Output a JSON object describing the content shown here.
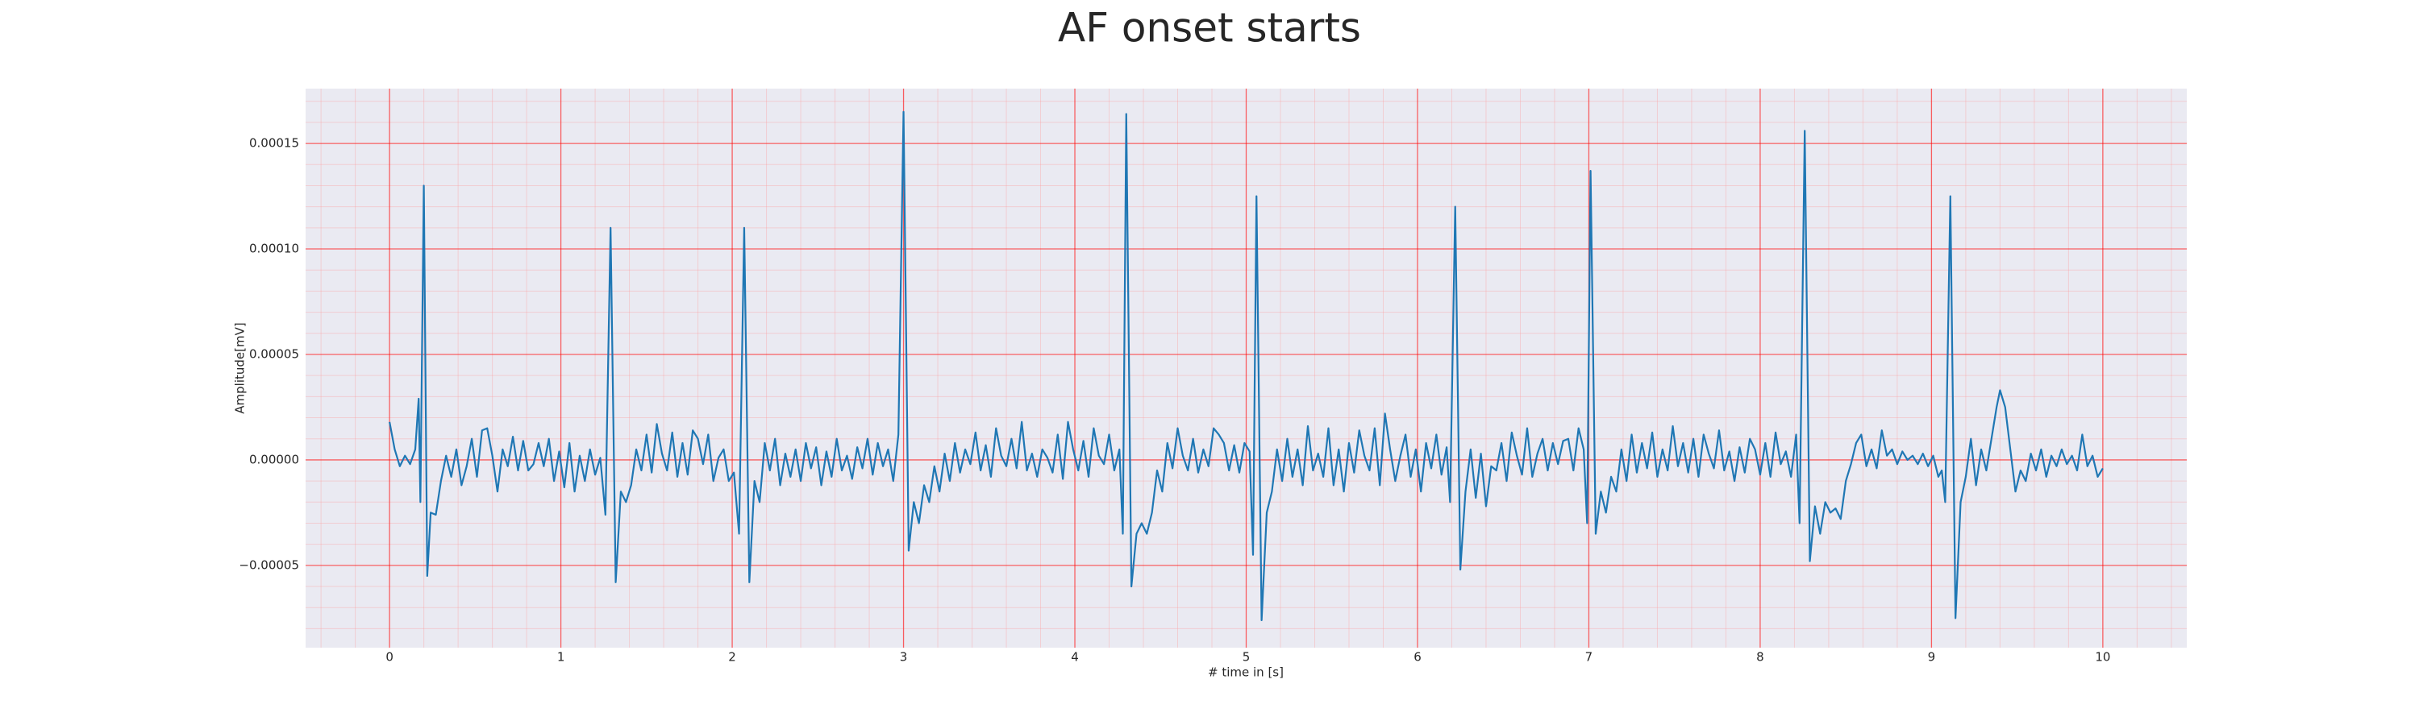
{
  "chart_data": {
    "type": "line",
    "title": "AF onset starts",
    "xlabel": "# time in [s]",
    "ylabel": "Amplitude[mV]",
    "color": "#1f77b4",
    "grid": true,
    "minor_grid": true,
    "xlim": [
      -0.49,
      10.49
    ],
    "ylim": [
      -8.9e-05,
      0.000176
    ],
    "xticks": [
      0,
      1,
      2,
      3,
      4,
      5,
      6,
      7,
      8,
      9,
      10
    ],
    "yticks": [
      {
        "value": -5e-05,
        "label": "−0.00005"
      },
      {
        "value": 0,
        "label": "0.00000"
      },
      {
        "value": 5e-05,
        "label": "0.00005"
      },
      {
        "value": 0.0001,
        "label": "0.00010"
      },
      {
        "value": 0.00015,
        "label": "0.00015"
      }
    ],
    "x": [
      0.0,
      0.03,
      0.06,
      0.09,
      0.12,
      0.15,
      0.17,
      0.18,
      0.2,
      0.22,
      0.24,
      0.27,
      0.3,
      0.33,
      0.36,
      0.39,
      0.42,
      0.45,
      0.48,
      0.51,
      0.54,
      0.57,
      0.6,
      0.63,
      0.66,
      0.69,
      0.72,
      0.75,
      0.78,
      0.81,
      0.84,
      0.87,
      0.9,
      0.93,
      0.96,
      0.99,
      1.02,
      1.05,
      1.08,
      1.11,
      1.14,
      1.17,
      1.2,
      1.23,
      1.26,
      1.29,
      1.32,
      1.35,
      1.38,
      1.41,
      1.44,
      1.47,
      1.5,
      1.53,
      1.56,
      1.59,
      1.62,
      1.65,
      1.68,
      1.71,
      1.74,
      1.77,
      1.8,
      1.83,
      1.86,
      1.89,
      1.92,
      1.95,
      1.98,
      2.01,
      2.04,
      2.07,
      2.1,
      2.13,
      2.16,
      2.19,
      2.22,
      2.25,
      2.28,
      2.31,
      2.34,
      2.37,
      2.4,
      2.43,
      2.46,
      2.49,
      2.52,
      2.55,
      2.58,
      2.61,
      2.64,
      2.67,
      2.7,
      2.73,
      2.76,
      2.79,
      2.82,
      2.85,
      2.88,
      2.91,
      2.94,
      2.97,
      3.0,
      3.03,
      3.06,
      3.09,
      3.12,
      3.15,
      3.18,
      3.21,
      3.24,
      3.27,
      3.3,
      3.33,
      3.36,
      3.39,
      3.42,
      3.45,
      3.48,
      3.51,
      3.54,
      3.57,
      3.6,
      3.63,
      3.66,
      3.69,
      3.72,
      3.75,
      3.78,
      3.81,
      3.84,
      3.87,
      3.9,
      3.93,
      3.96,
      3.99,
      4.02,
      4.05,
      4.08,
      4.11,
      4.14,
      4.17,
      4.2,
      4.23,
      4.26,
      4.28,
      4.3,
      4.33,
      4.36,
      4.39,
      4.42,
      4.45,
      4.48,
      4.51,
      4.54,
      4.57,
      4.6,
      4.63,
      4.66,
      4.69,
      4.72,
      4.75,
      4.78,
      4.81,
      4.84,
      4.87,
      4.9,
      4.93,
      4.96,
      4.99,
      5.02,
      5.04,
      5.06,
      5.09,
      5.12,
      5.15,
      5.18,
      5.21,
      5.24,
      5.27,
      5.3,
      5.33,
      5.36,
      5.39,
      5.42,
      5.45,
      5.48,
      5.51,
      5.54,
      5.57,
      5.6,
      5.63,
      5.66,
      5.69,
      5.72,
      5.75,
      5.78,
      5.81,
      5.84,
      5.87,
      5.9,
      5.93,
      5.96,
      5.99,
      6.02,
      6.05,
      6.08,
      6.11,
      6.14,
      6.17,
      6.19,
      6.22,
      6.25,
      6.28,
      6.31,
      6.34,
      6.37,
      6.4,
      6.43,
      6.46,
      6.49,
      6.52,
      6.55,
      6.58,
      6.61,
      6.64,
      6.67,
      6.7,
      6.73,
      6.76,
      6.79,
      6.82,
      6.85,
      6.88,
      6.91,
      6.94,
      6.97,
      6.99,
      7.01,
      7.04,
      7.07,
      7.1,
      7.13,
      7.16,
      7.19,
      7.22,
      7.25,
      7.28,
      7.31,
      7.34,
      7.37,
      7.4,
      7.43,
      7.46,
      7.49,
      7.52,
      7.55,
      7.58,
      7.61,
      7.64,
      7.67,
      7.7,
      7.73,
      7.76,
      7.79,
      7.82,
      7.85,
      7.88,
      7.91,
      7.94,
      7.97,
      8.0,
      8.03,
      8.06,
      8.09,
      8.12,
      8.15,
      8.18,
      8.21,
      8.23,
      8.26,
      8.29,
      8.32,
      8.35,
      8.38,
      8.41,
      8.44,
      8.47,
      8.5,
      8.53,
      8.56,
      8.59,
      8.62,
      8.65,
      8.68,
      8.71,
      8.74,
      8.77,
      8.8,
      8.83,
      8.86,
      8.89,
      8.92,
      8.95,
      8.98,
      9.01,
      9.04,
      9.06,
      9.08,
      9.11,
      9.14,
      9.17,
      9.2,
      9.23,
      9.26,
      9.29,
      9.32,
      9.35,
      9.38,
      9.4,
      9.43,
      9.46,
      9.49,
      9.52,
      9.55,
      9.58,
      9.61,
      9.64,
      9.67,
      9.7,
      9.73,
      9.76,
      9.79,
      9.82,
      9.85,
      9.88,
      9.91,
      9.94,
      9.97,
      10.0
    ],
    "values": [
      1.8e-05,
      5e-06,
      -3e-06,
      2e-06,
      -2e-06,
      5e-06,
      2.9e-05,
      -2e-05,
      0.00013,
      -5.5e-05,
      -2.5e-05,
      -2.6e-05,
      -1e-05,
      2e-06,
      -8e-06,
      5e-06,
      -1.2e-05,
      -3e-06,
      1e-05,
      -8e-06,
      1.4e-05,
      1.5e-05,
      2e-06,
      -1.5e-05,
      5e-06,
      -3e-06,
      1.1e-05,
      -5e-06,
      9e-06,
      -5e-06,
      -2e-06,
      8e-06,
      -3e-06,
      1e-05,
      -1e-05,
      4e-06,
      -1.3e-05,
      8e-06,
      -1.5e-05,
      2e-06,
      -1e-05,
      5e-06,
      -7e-06,
      1e-06,
      -2.6e-05,
      0.00011,
      -5.8e-05,
      -1.5e-05,
      -2e-05,
      -1.2e-05,
      5e-06,
      -5e-06,
      1.2e-05,
      -6e-06,
      1.7e-05,
      3e-06,
      -5e-06,
      1.3e-05,
      -8e-06,
      8e-06,
      -7e-06,
      1.4e-05,
      1e-05,
      -2e-06,
      1.2e-05,
      -1e-05,
      1e-06,
      5e-06,
      -1e-05,
      -6e-06,
      -3.5e-05,
      0.00011,
      -5.8e-05,
      -1e-05,
      -2e-05,
      8e-06,
      -5e-06,
      1e-05,
      -1.2e-05,
      3e-06,
      -8e-06,
      5e-06,
      -1e-05,
      8e-06,
      -4e-06,
      6e-06,
      -1.2e-05,
      4e-06,
      -8e-06,
      1e-05,
      -5e-06,
      2e-06,
      -9e-06,
      6e-06,
      -4e-06,
      1e-05,
      -7e-06,
      8e-06,
      -3e-06,
      5e-06,
      -1e-05,
      1.2e-05,
      0.000165,
      -4.3e-05,
      -2e-05,
      -3e-05,
      -1.2e-05,
      -2e-05,
      -3e-06,
      -1.5e-05,
      3e-06,
      -1e-05,
      8e-06,
      -6e-06,
      5e-06,
      -2e-06,
      1.3e-05,
      -5e-06,
      7e-06,
      -8e-06,
      1.5e-05,
      2e-06,
      -3e-06,
      1e-05,
      -4e-06,
      1.8e-05,
      -5e-06,
      3e-06,
      -8e-06,
      5e-06,
      1e-06,
      -6e-06,
      1.2e-05,
      -9e-06,
      1.8e-05,
      5e-06,
      -5e-06,
      9e-06,
      -8e-06,
      1.5e-05,
      2e-06,
      -2e-06,
      1.2e-05,
      -5e-06,
      5e-06,
      -3.5e-05,
      0.000164,
      -6e-05,
      -3.5e-05,
      -3e-05,
      -3.5e-05,
      -2.5e-05,
      -5e-06,
      -1.5e-05,
      8e-06,
      -4e-06,
      1.5e-05,
      2e-06,
      -5e-06,
      1e-05,
      -6e-06,
      5e-06,
      -3e-06,
      1.5e-05,
      1.2e-05,
      8e-06,
      -5e-06,
      7e-06,
      -6e-06,
      8e-06,
      4e-06,
      -4.5e-05,
      0.000125,
      -7.6e-05,
      -2.5e-05,
      -1.5e-05,
      5e-06,
      -1e-05,
      1e-05,
      -8e-06,
      5e-06,
      -1.2e-05,
      1.6e-05,
      -5e-06,
      3e-06,
      -8e-06,
      1.5e-05,
      -1.2e-05,
      5e-06,
      -1.5e-05,
      8e-06,
      -6e-06,
      1.4e-05,
      2e-06,
      -5e-06,
      1.5e-05,
      -1.2e-05,
      2.2e-05,
      5e-06,
      -1e-05,
      2e-06,
      1.2e-05,
      -8e-06,
      5e-06,
      -1.5e-05,
      8e-06,
      -4e-06,
      1.2e-05,
      -7e-06,
      6e-06,
      -2e-05,
      0.00012,
      -5.2e-05,
      -1.5e-05,
      5e-06,
      -1.8e-05,
      3e-06,
      -2.2e-05,
      -3e-06,
      -5e-06,
      8e-06,
      -1e-05,
      1.3e-05,
      2e-06,
      -7e-06,
      1.5e-05,
      -8e-06,
      3e-06,
      1e-05,
      -5e-06,
      8e-06,
      -2e-06,
      9e-06,
      1e-05,
      -5e-06,
      1.5e-05,
      5e-06,
      -3e-05,
      0.000137,
      -3.5e-05,
      -1.5e-05,
      -2.5e-05,
      -8e-06,
      -1.5e-05,
      5e-06,
      -1e-05,
      1.2e-05,
      -6e-06,
      8e-06,
      -4e-06,
      1.3e-05,
      -8e-06,
      5e-06,
      -5e-06,
      1.6e-05,
      -3e-06,
      8e-06,
      -6e-06,
      1e-05,
      -8e-06,
      1.2e-05,
      3e-06,
      -4e-06,
      1.4e-05,
      -5e-06,
      4e-06,
      -1e-05,
      6e-06,
      -6e-06,
      1e-05,
      5e-06,
      -7e-06,
      8e-06,
      -8e-06,
      1.3e-05,
      -2e-06,
      4e-06,
      -8e-06,
      1.2e-05,
      -3e-05,
      0.000156,
      -4.8e-05,
      -2.2e-05,
      -3.5e-05,
      -2e-05,
      -2.5e-05,
      -2.3e-05,
      -2.8e-05,
      -1e-05,
      -2e-06,
      8e-06,
      1.2e-05,
      -3e-06,
      5e-06,
      -4e-06,
      1.4e-05,
      2e-06,
      5e-06,
      -2e-06,
      4e-06,
      0.0,
      2e-06,
      -2e-06,
      3e-06,
      -3e-06,
      2e-06,
      -8e-06,
      -5e-06,
      -2e-05,
      0.000125,
      -7.5e-05,
      -2e-05,
      -8e-06,
      1e-05,
      -1.2e-05,
      5e-06,
      -5e-06,
      1e-05,
      2.5e-05,
      3.3e-05,
      2.5e-05,
      5e-06,
      -1.5e-05,
      -5e-06,
      -1e-05,
      3e-06,
      -5e-06,
      5e-06,
      -8e-06,
      2e-06,
      -3e-06,
      5e-06,
      -2e-06,
      2e-06,
      -5e-06,
      1.2e-05,
      -3e-06,
      2e-06,
      -8e-06,
      -4e-06
    ]
  }
}
